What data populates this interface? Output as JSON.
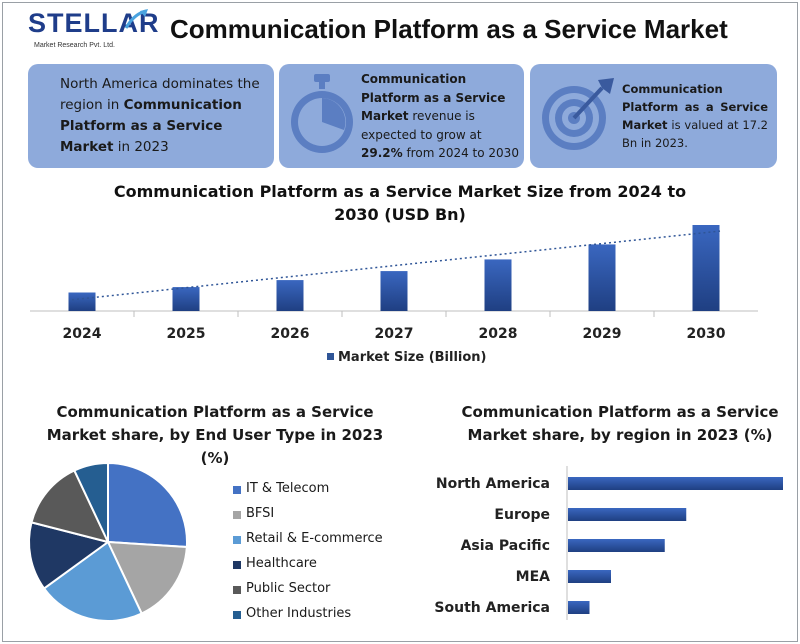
{
  "logo": {
    "word": "STELLAR",
    "tagline": "Market Research Pvt. Ltd."
  },
  "title": "Communication Platform as a Service Market",
  "cards": {
    "c1": {
      "p1": "North America dominates the region in ",
      "b1": "Communication Platform as a Service Market",
      "p2": " in 2023"
    },
    "c2": {
      "b1": "Communication Platform as a Service Market",
      "p1": " revenue is expected to grow at ",
      "b2": "29.2%",
      "p2": " from 2024 to 2030"
    },
    "c3": {
      "b1": "Communication Platform as a Service Market",
      "p1": " is valued at 17.2 Bn in 2023."
    }
  },
  "colors": {
    "card_bg": "#8eaadb",
    "bar": "#2f5597",
    "logo": "#1f3d8a"
  },
  "icons": {
    "card2": "stopwatch-icon",
    "card3": "target-arrow-icon"
  },
  "chart_data": [
    {
      "type": "bar",
      "title": "Communication Platform as a Service Market Size from 2024 to 2030 (USD Bn)",
      "categories": [
        "2024",
        "2025",
        "2026",
        "2027",
        "2028",
        "2029",
        "2030"
      ],
      "series": [
        {
          "name": "Market Size (Billion)",
          "values": [
            22.2,
            28.7,
            37.1,
            47.9,
            61.9,
            79.9,
            103.3
          ]
        }
      ],
      "ylim": [
        0,
        120
      ],
      "trendline": "dotted linear",
      "legend": "bottom",
      "grid": false
    },
    {
      "type": "pie",
      "title": "Communication Platform as a Service Market share, by End User Type in 2023 (%)",
      "labels": [
        "IT & Telecom",
        "BFSI",
        "Retail & E-commerce",
        "Healthcare",
        "Public Sector",
        "Other Industries"
      ],
      "values": [
        26,
        17,
        22,
        14,
        14,
        7
      ],
      "colors": [
        "#4472c4",
        "#a5a5a5",
        "#5b9bd5",
        "#1f3864",
        "#595959",
        "#255e91"
      ],
      "legend": "right"
    },
    {
      "type": "bar",
      "orientation": "horizontal",
      "title": "Communication Platform as a Service Market share, by region in 2023 (%)",
      "categories": [
        "North America",
        "Europe",
        "Asia Pacific",
        "MEA",
        "South America"
      ],
      "values": [
        40,
        22,
        18,
        8,
        4
      ],
      "xlim": [
        0,
        40
      ],
      "legend": "none"
    }
  ]
}
